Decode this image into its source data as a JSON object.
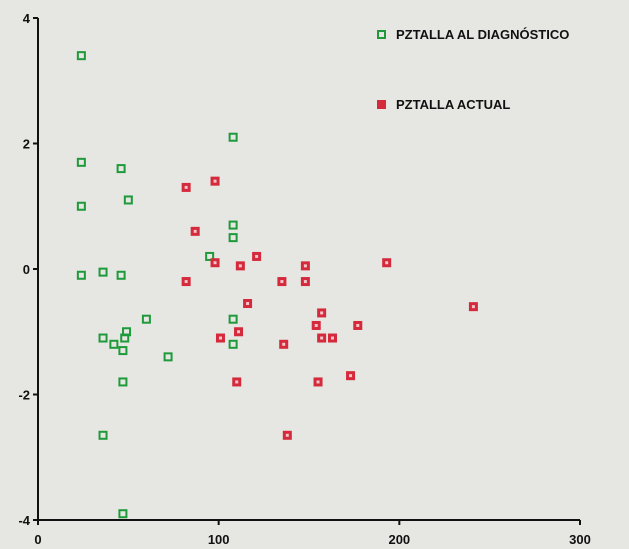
{
  "chart_data": {
    "type": "scatter",
    "title": "",
    "xlabel": "",
    "ylabel": "",
    "xlim": [
      0,
      300
    ],
    "ylim": [
      -4,
      4
    ],
    "x_ticks": [
      {
        "value": 0,
        "label": "0"
      },
      {
        "value": 100,
        "label": "100"
      },
      {
        "value": 200,
        "label": "200"
      },
      {
        "value": 300,
        "label": "300"
      }
    ],
    "y_ticks": [
      {
        "value": 4,
        "label": "4"
      },
      {
        "value": 2,
        "label": "2"
      },
      {
        "value": 0,
        "label": "0"
      },
      {
        "value": -2,
        "label": "-2"
      },
      {
        "value": -4,
        "label": "-4"
      }
    ],
    "grid": false,
    "legend_position": "top-right",
    "series": [
      {
        "name": "PZTALLA AL DIAGNÓSTICO",
        "color": "#1e9a3a",
        "marker": "hollow-square",
        "points": [
          [
            24,
            3.4
          ],
          [
            24,
            1.7
          ],
          [
            24,
            1.0
          ],
          [
            24,
            -0.1
          ],
          [
            36,
            -0.05
          ],
          [
            36,
            -1.1
          ],
          [
            36,
            -2.65
          ],
          [
            42,
            -1.2
          ],
          [
            46,
            1.6
          ],
          [
            46,
            -0.1
          ],
          [
            47,
            -1.3
          ],
          [
            48,
            -1.1
          ],
          [
            49,
            -1.0
          ],
          [
            47,
            -1.8
          ],
          [
            47,
            -3.9
          ],
          [
            50,
            1.1
          ],
          [
            60,
            -0.8
          ],
          [
            72,
            -1.4
          ],
          [
            95,
            0.2
          ],
          [
            108,
            2.1
          ],
          [
            108,
            0.7
          ],
          [
            108,
            0.5
          ],
          [
            108,
            -0.8
          ],
          [
            108,
            -1.2
          ]
        ]
      },
      {
        "name": "PZTALLA ACTUAL",
        "color": "#d42a3c",
        "marker": "filled-square",
        "points": [
          [
            82,
            1.3
          ],
          [
            82,
            -0.2
          ],
          [
            87,
            0.6
          ],
          [
            98,
            1.4
          ],
          [
            98,
            0.1
          ],
          [
            101,
            -1.1
          ],
          [
            110,
            -1.8
          ],
          [
            111,
            -1.0
          ],
          [
            112,
            0.05
          ],
          [
            116,
            -0.55
          ],
          [
            121,
            0.2
          ],
          [
            135,
            -0.2
          ],
          [
            136,
            -1.2
          ],
          [
            138,
            -2.65
          ],
          [
            148,
            0.05
          ],
          [
            148,
            -0.2
          ],
          [
            154,
            -0.9
          ],
          [
            155,
            -1.8
          ],
          [
            157,
            -0.7
          ],
          [
            157,
            -1.1
          ],
          [
            163,
            -1.1
          ],
          [
            173,
            -1.7
          ],
          [
            177,
            -0.9
          ],
          [
            193,
            0.1
          ],
          [
            241,
            -0.6
          ]
        ]
      }
    ]
  }
}
